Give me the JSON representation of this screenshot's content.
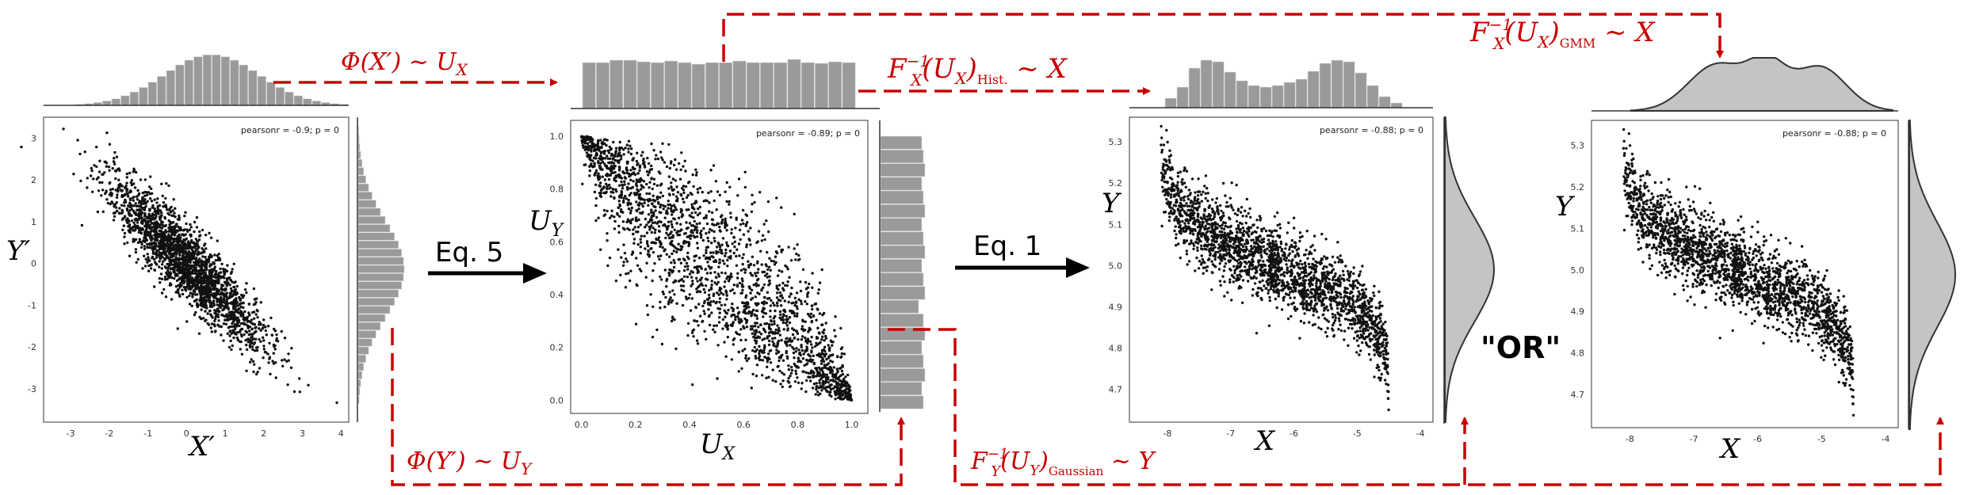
{
  "colors": {
    "accent": "#c80000",
    "bars": "#9a9a9a",
    "kde_fill": "#c4c4c4",
    "points": "#111111",
    "arrow": "#000000"
  },
  "labels": {
    "phi_x": "Φ(X′) ~ U",
    "phi_x_sub": "X",
    "phi_y": "Φ(Y′) ~ U",
    "phi_y_sub": "Y",
    "finv_hist": "F",
    "finv_hist_sub": "X",
    "finv_hist_sup": "−1",
    "finv_hist_arg": "(U",
    "finv_hist_arg_sub": "X",
    "finv_hist_tail": ")",
    "finv_hist_method": "Hist.",
    "finv_hist_end": " ~ X",
    "finv_gauss": "F",
    "finv_gauss_sub": "Y",
    "finv_gauss_sup": "−1",
    "finv_gauss_arg": "(U",
    "finv_gauss_arg_sub": "Y",
    "finv_gauss_tail": ")",
    "finv_gauss_method": "Gaussian",
    "finv_gauss_end": " ~ Y",
    "finv_gmm": "F",
    "finv_gmm_sub": "X",
    "finv_gmm_sup": "−1",
    "finv_gmm_arg": "(U",
    "finv_gmm_arg_sub": "X",
    "finv_gmm_tail": ")",
    "finv_gmm_method": "GMM",
    "finv_gmm_end": " ~ X",
    "eq5": "Eq. 5",
    "eq1": "Eq. 1",
    "or": "\"OR\""
  },
  "panels": [
    {
      "id": "p1",
      "xlabel": "X′",
      "ylabel": "Y′",
      "pearson": "pearsonr = -0.9; p = 0",
      "xticks": [
        "-3",
        "-2",
        "-1",
        "0",
        "1",
        "2",
        "3",
        "4"
      ],
      "yticks": [
        "3",
        "2",
        "1",
        "0",
        "-1",
        "-2",
        "-3"
      ],
      "xrange": [
        -3.7,
        4.2
      ],
      "yrange": [
        -3.8,
        3.5
      ]
    },
    {
      "id": "p2",
      "xlabel": "U",
      "xlabel_sub": "X",
      "ylabel": "U",
      "ylabel_sub": "Y",
      "pearson": "pearsonr = -0.89; p = 0",
      "xticks": [
        "0.0",
        "0.2",
        "0.4",
        "0.6",
        "0.8",
        "1.0"
      ],
      "yticks": [
        "1.0",
        "0.8",
        "0.6",
        "0.4",
        "0.2",
        "0.0"
      ],
      "xrange": [
        -0.04,
        1.06
      ],
      "yrange": [
        -0.05,
        1.06
      ]
    },
    {
      "id": "p3",
      "xlabel": "X",
      "ylabel": "Y",
      "pearson": "pearsonr = -0.88; p = 0",
      "xticks": [
        "-8",
        "-7",
        "-6",
        "-5",
        "-4"
      ],
      "yticks": [
        "5.3",
        "5.2",
        "5.1",
        "5.0",
        "4.9",
        "4.8",
        "4.7"
      ],
      "xrange": [
        -8.6,
        -3.8
      ],
      "yrange": [
        4.62,
        5.36
      ]
    },
    {
      "id": "p4",
      "xlabel": "X",
      "ylabel": "Y",
      "pearson": "pearsonr = -0.88; p = 0",
      "xticks": [
        "-8",
        "-7",
        "-6",
        "-5",
        "-4"
      ],
      "yticks": [
        "5.3",
        "5.2",
        "5.1",
        "5.0",
        "4.9",
        "4.8",
        "4.7"
      ],
      "xrange": [
        -8.6,
        -3.8
      ],
      "yrange": [
        4.62,
        5.36
      ]
    }
  ]
}
